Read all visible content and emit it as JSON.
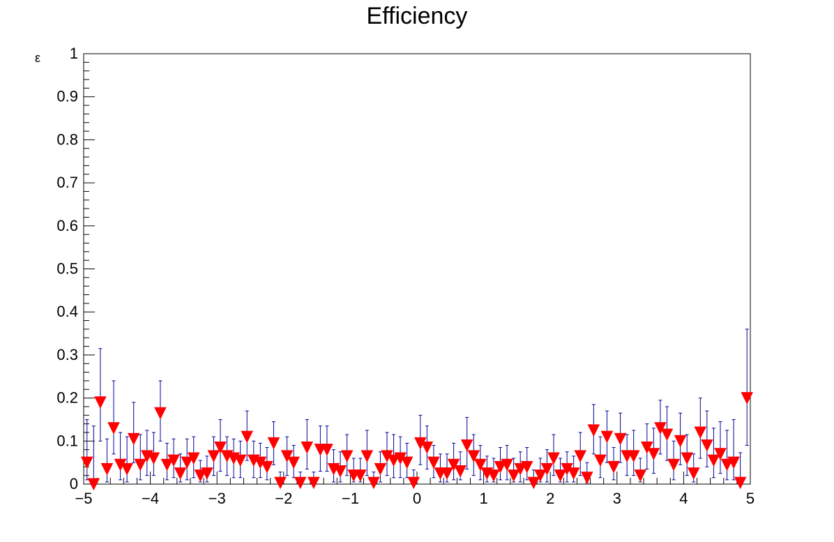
{
  "chart_data": {
    "type": "scatter",
    "title": "Efficiency",
    "xlabel": "",
    "ylabel": "ε",
    "xlim": [
      -5,
      5
    ],
    "ylim": [
      0,
      1
    ],
    "xticks": [
      -5,
      -4,
      -3,
      -2,
      -1,
      0,
      1,
      2,
      3,
      4,
      5
    ],
    "xtick_labels": [
      "−5",
      "−4",
      "−3",
      "−2",
      "−1",
      "0",
      "1",
      "2",
      "3",
      "4",
      "5"
    ],
    "yticks": [
      0,
      0.1,
      0.2,
      0.3,
      0.4,
      0.5,
      0.6,
      0.7,
      0.8,
      0.9,
      1
    ],
    "ytick_labels": [
      "0",
      "0.1",
      "0.2",
      "0.3",
      "0.4",
      "0.5",
      "0.6",
      "0.7",
      "0.8",
      "0.9",
      "1"
    ],
    "grid": false,
    "legend": "none",
    "marker": "inverted-triangle",
    "marker_color": "#ff0000",
    "errorbar_color": "#000099",
    "series": [
      {
        "x": [
          -4.95,
          -4.85,
          -4.75,
          -4.65,
          -4.55,
          -4.45,
          -4.35,
          -4.25,
          -4.15,
          -4.05,
          -3.95,
          -3.85,
          -3.75,
          -3.65,
          -3.55,
          -3.45,
          -3.35,
          -3.25,
          -3.15,
          -3.05,
          -2.95,
          -2.85,
          -2.75,
          -2.65,
          -2.55,
          -2.45,
          -2.35,
          -2.25,
          -2.15,
          -2.05,
          -1.95,
          -1.85,
          -1.75,
          -1.65,
          -1.55,
          -1.45,
          -1.35,
          -1.25,
          -1.15,
          -1.05,
          -0.95,
          -0.85,
          -0.75,
          -0.65,
          -0.55,
          -0.45,
          -0.35,
          -0.25,
          -0.15,
          -0.05,
          0.05,
          0.15,
          0.25,
          0.35,
          0.45,
          0.55,
          0.65,
          0.75,
          0.85,
          0.95,
          1.05,
          1.15,
          1.25,
          1.35,
          1.45,
          1.55,
          1.65,
          1.75,
          1.85,
          1.95,
          2.05,
          2.15,
          2.25,
          2.35,
          2.45,
          2.55,
          2.65,
          2.75,
          2.85,
          2.95,
          3.05,
          3.15,
          3.25,
          3.35,
          3.45,
          3.55,
          3.65,
          3.75,
          3.85,
          3.95,
          4.05,
          4.15,
          4.25,
          4.35,
          4.45,
          4.55,
          4.65,
          4.75,
          4.85,
          4.95
        ],
        "y": [
          0.05,
          0.0,
          0.19,
          0.035,
          0.13,
          0.045,
          0.035,
          0.105,
          0.045,
          0.065,
          0.06,
          0.165,
          0.045,
          0.055,
          0.025,
          0.05,
          0.06,
          0.02,
          0.025,
          0.065,
          0.085,
          0.065,
          0.06,
          0.055,
          0.11,
          0.055,
          0.05,
          0.04,
          0.095,
          0.003,
          0.065,
          0.05,
          0.003,
          0.085,
          0.003,
          0.08,
          0.08,
          0.035,
          0.03,
          0.065,
          0.02,
          0.02,
          0.065,
          0.003,
          0.035,
          0.065,
          0.055,
          0.06,
          0.05,
          0.003,
          0.095,
          0.085,
          0.05,
          0.025,
          0.025,
          0.045,
          0.03,
          0.09,
          0.065,
          0.045,
          0.025,
          0.02,
          0.04,
          0.045,
          0.02,
          0.035,
          0.04,
          0.003,
          0.02,
          0.035,
          0.06,
          0.02,
          0.035,
          0.025,
          0.065,
          0.015,
          0.125,
          0.055,
          0.11,
          0.04,
          0.105,
          0.065,
          0.065,
          0.02,
          0.085,
          0.07,
          0.13,
          0.115,
          0.045,
          0.1,
          0.06,
          0.025,
          0.12,
          0.09,
          0.055,
          0.07,
          0.045,
          0.05,
          0.003,
          0.2
        ],
        "y_err_low": [
          0.04,
          0.0,
          0.09,
          0.03,
          0.06,
          0.035,
          0.03,
          0.055,
          0.035,
          0.045,
          0.04,
          0.065,
          0.035,
          0.04,
          0.02,
          0.04,
          0.045,
          0.015,
          0.02,
          0.045,
          0.055,
          0.045,
          0.045,
          0.04,
          0.055,
          0.04,
          0.035,
          0.03,
          0.05,
          0.003,
          0.045,
          0.035,
          0.003,
          0.05,
          0.003,
          0.05,
          0.05,
          0.03,
          0.025,
          0.045,
          0.015,
          0.015,
          0.045,
          0.003,
          0.03,
          0.045,
          0.04,
          0.045,
          0.035,
          0.003,
          0.05,
          0.05,
          0.035,
          0.02,
          0.02,
          0.035,
          0.02,
          0.055,
          0.045,
          0.035,
          0.02,
          0.015,
          0.03,
          0.035,
          0.015,
          0.03,
          0.03,
          0.003,
          0.015,
          0.03,
          0.04,
          0.015,
          0.03,
          0.02,
          0.045,
          0.012,
          0.055,
          0.04,
          0.06,
          0.03,
          0.055,
          0.045,
          0.045,
          0.015,
          0.05,
          0.045,
          0.06,
          0.06,
          0.035,
          0.055,
          0.04,
          0.02,
          0.06,
          0.05,
          0.04,
          0.045,
          0.035,
          0.04,
          0.003,
          0.11
        ],
        "y_err_high": [
          0.1,
          0.135,
          0.125,
          0.07,
          0.11,
          0.075,
          0.075,
          0.085,
          0.07,
          0.06,
          0.06,
          0.075,
          0.05,
          0.05,
          0.045,
          0.055,
          0.05,
          0.035,
          0.04,
          0.045,
          0.065,
          0.045,
          0.045,
          0.045,
          0.06,
          0.045,
          0.045,
          0.045,
          0.05,
          0.025,
          0.045,
          0.04,
          0.025,
          0.065,
          0.025,
          0.055,
          0.055,
          0.045,
          0.045,
          0.05,
          0.04,
          0.04,
          0.06,
          0.025,
          0.04,
          0.055,
          0.06,
          0.05,
          0.045,
          0.03,
          0.065,
          0.05,
          0.04,
          0.045,
          0.045,
          0.05,
          0.045,
          0.065,
          0.05,
          0.045,
          0.04,
          0.04,
          0.045,
          0.045,
          0.04,
          0.04,
          0.045,
          0.03,
          0.04,
          0.045,
          0.055,
          0.04,
          0.04,
          0.04,
          0.055,
          0.035,
          0.06,
          0.055,
          0.06,
          0.045,
          0.06,
          0.05,
          0.06,
          0.04,
          0.055,
          0.06,
          0.065,
          0.065,
          0.055,
          0.065,
          0.055,
          0.045,
          0.08,
          0.08,
          0.075,
          0.075,
          0.08,
          0.1,
          0.07,
          0.16
        ]
      }
    ]
  }
}
